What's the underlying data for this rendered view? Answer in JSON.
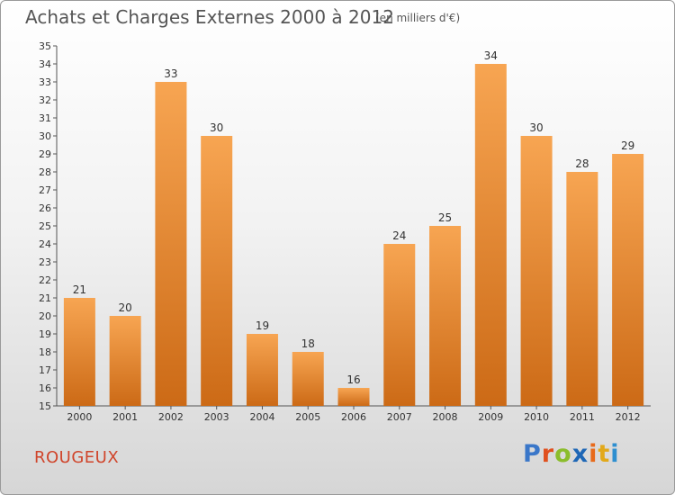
{
  "header": {
    "title": "Achats et Charges Externes 2000 à 2012",
    "subtitle": "(en milliers d'€)"
  },
  "commune": "ROUGEUX",
  "brand": {
    "p": "P",
    "r": "r",
    "o": "o",
    "x": "x",
    "i1": "i",
    "t": "t",
    "i2": "i"
  },
  "colors": {
    "bar_light": "#f7a552",
    "bar_dark": "#cc6a16",
    "axis": "#555555",
    "commune": "#d0452b"
  },
  "chart_data": {
    "type": "bar",
    "categories": [
      "2000",
      "2001",
      "2002",
      "2003",
      "2004",
      "2005",
      "2006",
      "2007",
      "2008",
      "2009",
      "2010",
      "2011",
      "2012"
    ],
    "values": [
      21,
      20,
      33,
      30,
      19,
      18,
      16,
      24,
      25,
      34,
      30,
      28,
      29
    ],
    "ylim": [
      15,
      35
    ],
    "yticks": [
      15,
      16,
      17,
      18,
      19,
      20,
      21,
      22,
      23,
      24,
      25,
      26,
      27,
      28,
      29,
      30,
      31,
      32,
      33,
      34,
      35
    ],
    "grid": false,
    "data_labels": true
  }
}
